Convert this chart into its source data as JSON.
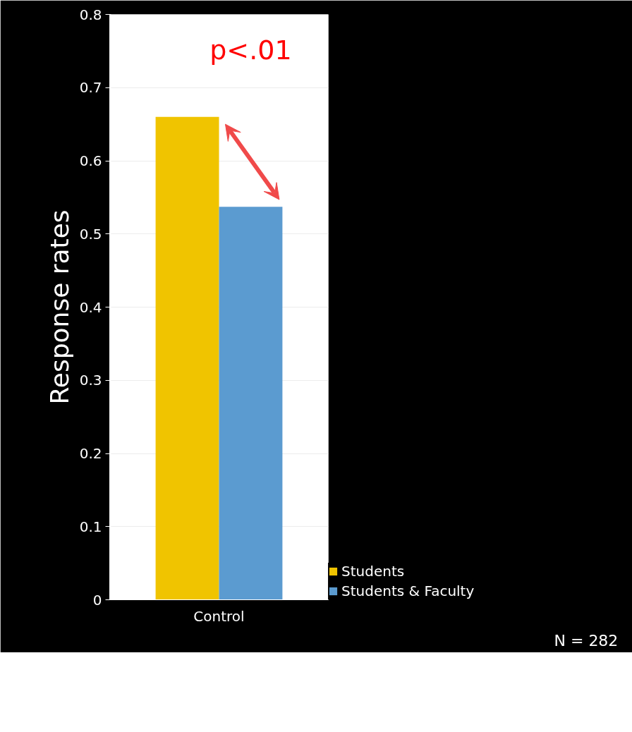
{
  "chart_data": {
    "type": "bar",
    "ylabel": "Response rates",
    "categories": [
      "Control"
    ],
    "series": [
      {
        "name": "Students",
        "color": "#f0c400",
        "values": [
          0.66
        ]
      },
      {
        "name": "Students & Faculty",
        "color": "#5b9bd0",
        "values": [
          0.537
        ]
      }
    ],
    "ylim": [
      0,
      0.8
    ],
    "yticks": [
      0,
      0.1,
      0.2,
      0.3,
      0.4,
      0.5,
      0.6,
      0.7,
      0.8
    ],
    "grid": "y",
    "legend": "bottom",
    "annotations": [
      "p<.01",
      "N = 282"
    ]
  }
}
